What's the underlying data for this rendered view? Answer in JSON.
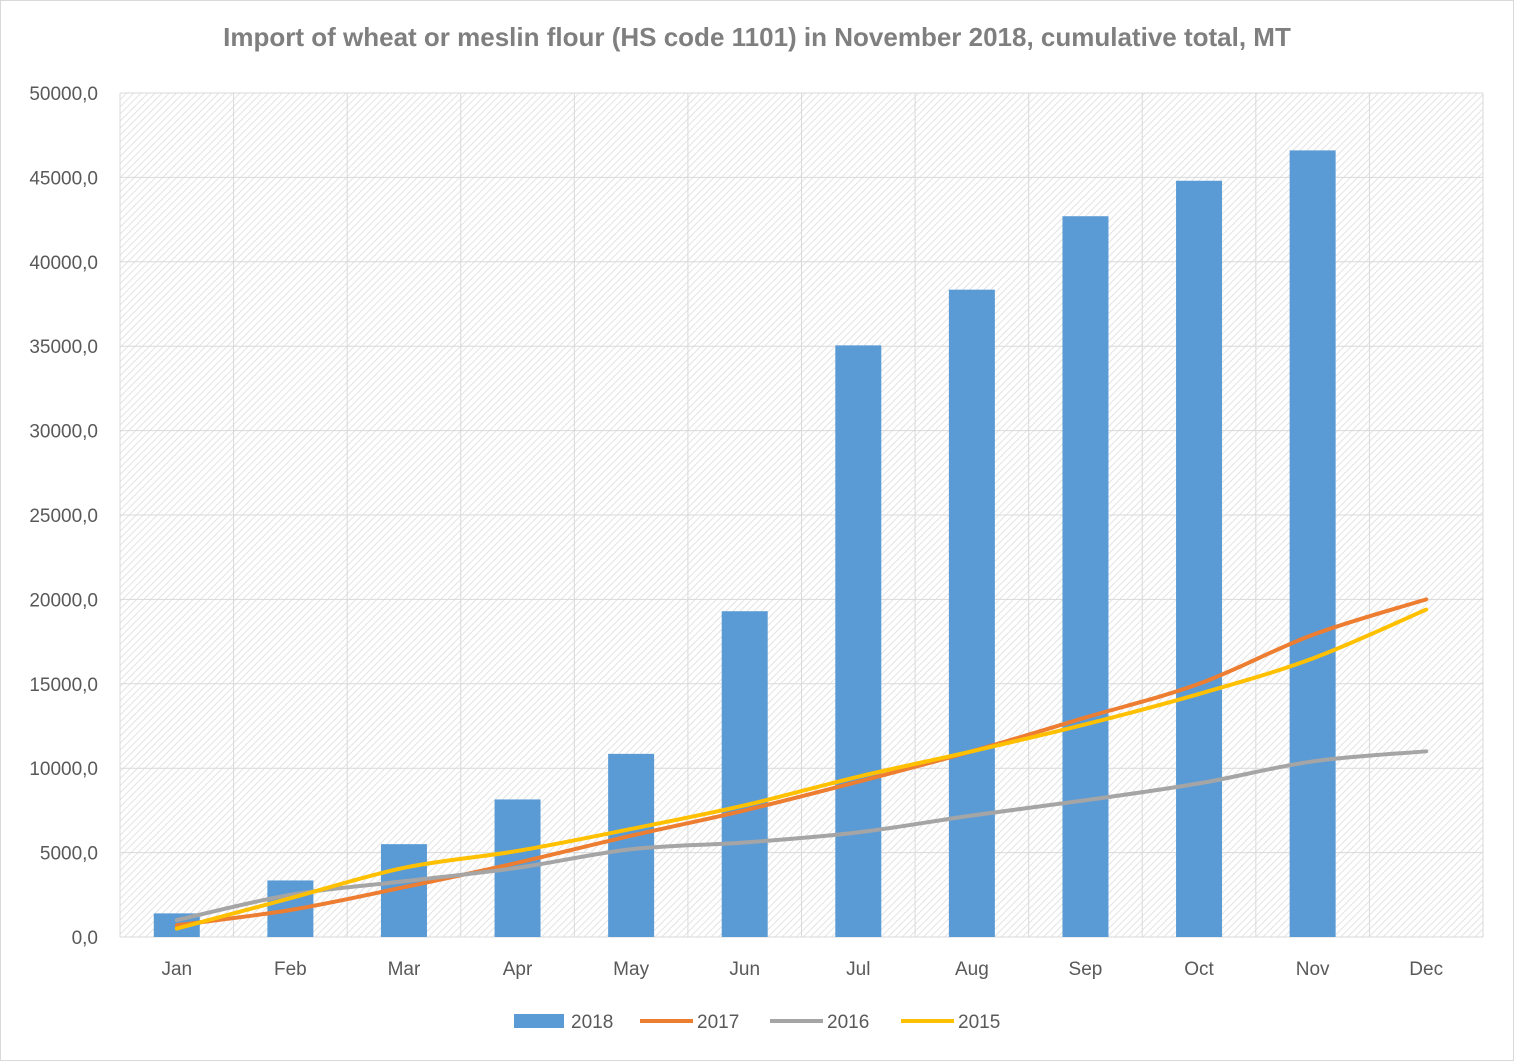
{
  "chart_data": {
    "type": "bar",
    "title": "Import of wheat or meslin flour (HS code 1101) in November 2018, cumulative total, MT",
    "xlabel": "",
    "ylabel": "",
    "categories": [
      "Jan",
      "Feb",
      "Mar",
      "Apr",
      "May",
      "Jun",
      "Jul",
      "Aug",
      "Sep",
      "Oct",
      "Nov",
      "Dec"
    ],
    "ylim": [
      0,
      50000
    ],
    "yticks": [
      0,
      5000,
      10000,
      15000,
      20000,
      25000,
      30000,
      35000,
      40000,
      45000,
      50000
    ],
    "ytick_labels": [
      "0,0",
      "5000,0",
      "10000,0",
      "15000,0",
      "20000,0",
      "25000,0",
      "30000,0",
      "35000,0",
      "40000,0",
      "45000,0",
      "50000,0"
    ],
    "grid": true,
    "legend_position": "bottom",
    "series": [
      {
        "name": "2018",
        "kind": "bar",
        "color": "#5b9bd5",
        "values": [
          1400,
          3350,
          5500,
          8150,
          10850,
          19300,
          35050,
          38350,
          42700,
          44800,
          46600,
          null
        ]
      },
      {
        "name": "2017",
        "kind": "line",
        "color": "#ed7d31",
        "values": [
          700,
          1600,
          2950,
          4400,
          6000,
          7500,
          9200,
          11000,
          13000,
          15000,
          17900,
          20000
        ]
      },
      {
        "name": "2016",
        "kind": "line",
        "color": "#a5a5a5",
        "values": [
          1000,
          2500,
          3300,
          4100,
          5200,
          5600,
          6200,
          7200,
          8100,
          9100,
          10400,
          11000
        ]
      },
      {
        "name": "2015",
        "kind": "line",
        "color": "#ffc000",
        "values": [
          500,
          2300,
          4100,
          5100,
          6400,
          7800,
          9500,
          11000,
          12600,
          14400,
          16500,
          19400
        ]
      }
    ]
  }
}
